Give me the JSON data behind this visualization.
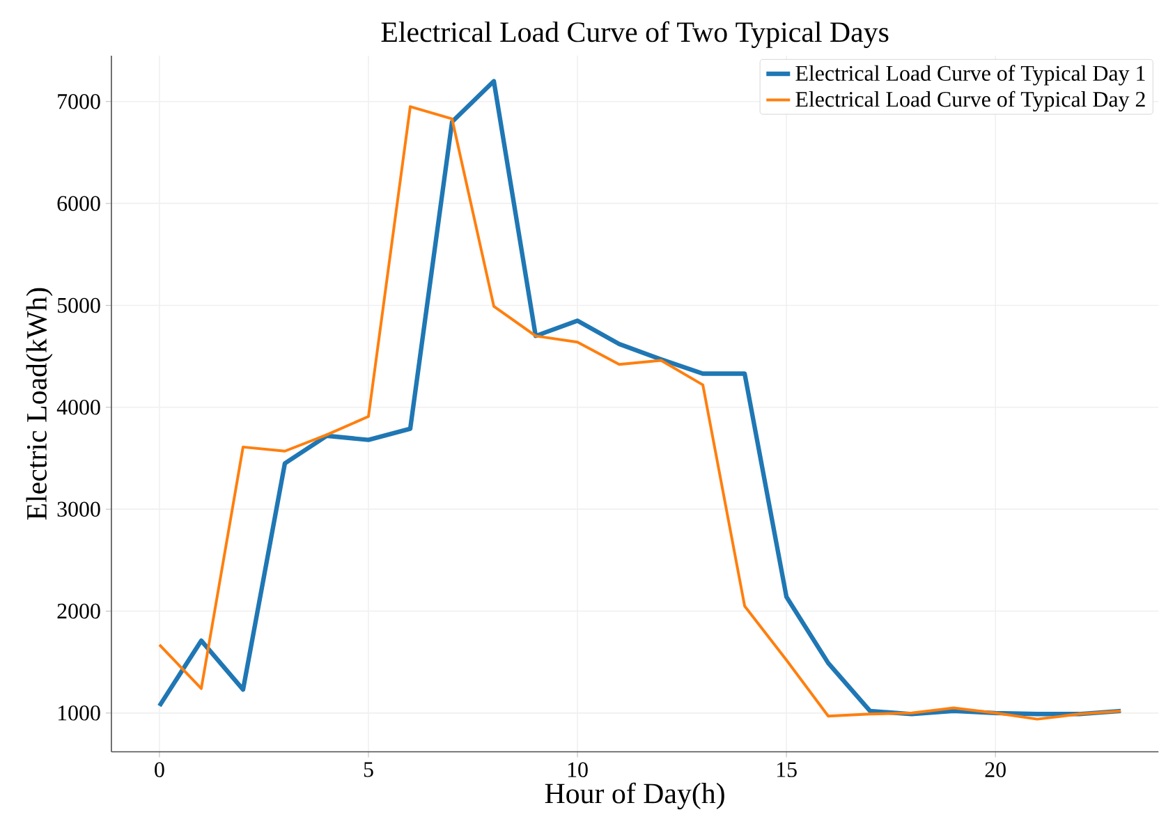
{
  "chart_data": {
    "type": "line",
    "title": "Electrical Load Curve of Two Typical Days",
    "xlabel": "Hour of Day(h)",
    "ylabel": "Electric Load(kWh)",
    "x": [
      0,
      1,
      2,
      3,
      4,
      5,
      6,
      7,
      8,
      9,
      10,
      11,
      12,
      13,
      14,
      15,
      16,
      17,
      18,
      19,
      20,
      21,
      22,
      23
    ],
    "series": [
      {
        "name": "Electrical Load Curve of Typical Day 1",
        "color": "#1f77b4",
        "values": [
          1070,
          1710,
          1230,
          3450,
          3720,
          3680,
          3790,
          6800,
          7200,
          4700,
          4850,
          4620,
          4470,
          4330,
          4330,
          2140,
          1490,
          1020,
          990,
          1020,
          1000,
          990,
          990,
          1020
        ]
      },
      {
        "name": "Electrical Load Curve of Typical Day 2",
        "color": "#ff7f0e",
        "values": [
          1670,
          1240,
          3610,
          3570,
          3730,
          3910,
          6950,
          6830,
          4990,
          4700,
          4640,
          4420,
          4460,
          4220,
          2050,
          1520,
          970,
          990,
          1000,
          1050,
          1000,
          940,
          990,
          1020
        ]
      }
    ],
    "xlim": [
      -1.15,
      23.9
    ],
    "ylim": [
      620,
      7450
    ],
    "xticks": [
      0,
      5,
      10,
      15,
      20
    ],
    "yticks": [
      1000,
      2000,
      3000,
      4000,
      5000,
      6000,
      7000
    ],
    "grid": true,
    "legend": "top right",
    "marker": "none",
    "line_style": "solid"
  }
}
